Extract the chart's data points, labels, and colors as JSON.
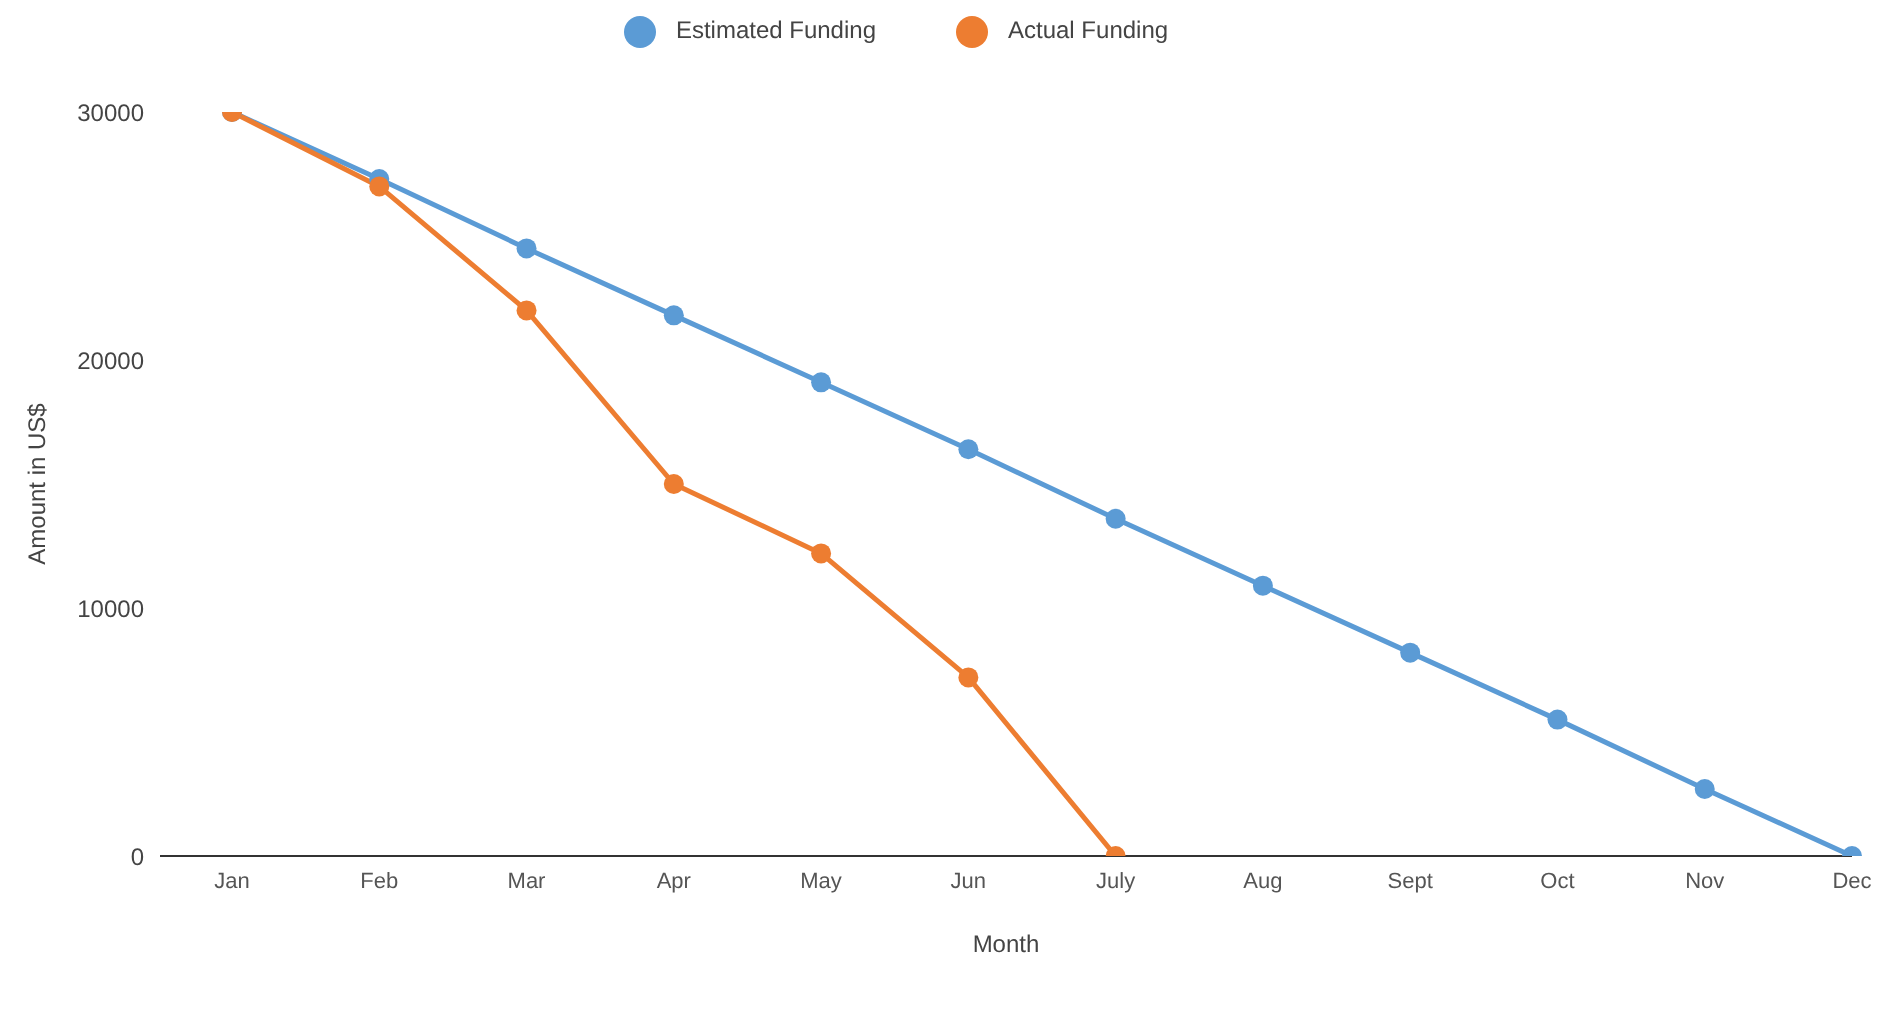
{
  "chart_data": {
    "type": "line",
    "xlabel": "Month",
    "ylabel": "Amount in US$",
    "categories": [
      "Jan",
      "Feb",
      "Mar",
      "Apr",
      "May",
      "Jun",
      "July",
      "Aug",
      "Sept",
      "Oct",
      "Nov",
      "Dec"
    ],
    "series": [
      {
        "name": "Estimated Funding",
        "color": "#5b9bd5",
        "values": [
          30000,
          27300,
          24500,
          21800,
          19100,
          16400,
          13600,
          10900,
          8200,
          5500,
          2700,
          0
        ]
      },
      {
        "name": "Actual Funding",
        "color": "#ed7d31",
        "values": [
          30000,
          27000,
          22000,
          15000,
          12200,
          7200,
          0,
          null,
          null,
          null,
          null,
          null
        ]
      }
    ],
    "ylim": [
      0,
      30000
    ],
    "yticks": [
      0,
      10000,
      20000,
      30000
    ],
    "legend": "top",
    "marker": "circle",
    "line_style": "solid"
  }
}
